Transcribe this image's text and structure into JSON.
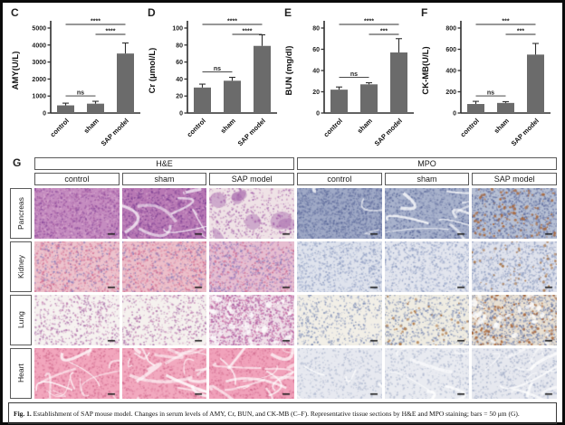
{
  "figure": {
    "caption_bold": "Fig. 1.",
    "caption_rest": " Establishment of SAP mouse model. Changes in serum levels of AMY, Cr, BUN, and CK-MB (C–F). Representative tissue sections by H&E and MPO staining; bars = 50 μm (G)."
  },
  "colors": {
    "bar": "#6b6b6b",
    "axis": "#2f2f2f",
    "error": "#2f2f2f"
  },
  "chart_data": [
    {
      "type": "bar",
      "panel": "C",
      "ylabel": "AMY(U/L)",
      "ylim": [
        0,
        5000
      ],
      "ytick_step": 1000,
      "categories": [
        "control",
        "sham",
        "SAP model"
      ],
      "values": [
        450,
        550,
        3500
      ],
      "errors": [
        130,
        140,
        620
      ],
      "sig": [
        {
          "pair": [
            0,
            1
          ],
          "label": "ns",
          "level": "bars"
        },
        {
          "pair": [
            1,
            2
          ],
          "label": "****",
          "level": 1
        },
        {
          "pair": [
            0,
            2
          ],
          "label": "****",
          "level": 2
        }
      ]
    },
    {
      "type": "bar",
      "panel": "D",
      "ylabel": "Cr (μmol/L)",
      "ylim": [
        0,
        100
      ],
      "ytick_step": 20,
      "categories": [
        "control",
        "sham",
        "SAP model"
      ],
      "values": [
        30,
        38,
        79
      ],
      "errors": [
        4,
        4,
        13
      ],
      "sig": [
        {
          "pair": [
            0,
            1
          ],
          "label": "ns",
          "level": "bars"
        },
        {
          "pair": [
            1,
            2
          ],
          "label": "****",
          "level": 1
        },
        {
          "pair": [
            0,
            2
          ],
          "label": "****",
          "level": 2
        }
      ]
    },
    {
      "type": "bar",
      "panel": "E",
      "ylabel": "BUN (mg/dl)",
      "ylim": [
        0,
        80
      ],
      "ytick_step": 20,
      "categories": [
        "control",
        "sham",
        "SAP model"
      ],
      "values": [
        22,
        27,
        57
      ],
      "errors": [
        2.5,
        1.5,
        13
      ],
      "sig": [
        {
          "pair": [
            0,
            1
          ],
          "label": "ns",
          "level": "bars"
        },
        {
          "pair": [
            1,
            2
          ],
          "label": "***",
          "level": 1
        },
        {
          "pair": [
            0,
            2
          ],
          "label": "****",
          "level": 2
        }
      ]
    },
    {
      "type": "bar",
      "panel": "F",
      "ylabel": "CK-MB(U/L)",
      "ylim": [
        0,
        800
      ],
      "ytick_step": 200,
      "categories": [
        "control",
        "sham",
        "SAP model"
      ],
      "values": [
        85,
        95,
        550
      ],
      "errors": [
        25,
        12,
        105
      ],
      "sig": [
        {
          "pair": [
            0,
            1
          ],
          "label": "ns",
          "level": "bars"
        },
        {
          "pair": [
            1,
            2
          ],
          "label": "***",
          "level": 1
        },
        {
          "pair": [
            0,
            2
          ],
          "label": "***",
          "level": 2
        }
      ]
    }
  ],
  "panelG": {
    "label": "G",
    "stain_groups": [
      {
        "label": "H&E",
        "cols": 3
      },
      {
        "label": "MPO",
        "cols": 3
      }
    ],
    "col_labels": [
      "control",
      "sham",
      "SAP model",
      "control",
      "sham",
      "SAP model"
    ],
    "rows": [
      {
        "label": "Pancreas",
        "tiles": [
          {
            "base": "#c58cc0",
            "dots": [
              "#8f4f9f",
              "#a75fa5",
              "#d9a9ce"
            ],
            "density": 1400
          },
          {
            "base": "#b878b4",
            "dots": [
              "#8f4f9f",
              "#7a3f92",
              "#cf9cc8"
            ],
            "density": 1200,
            "streaks": 10
          },
          {
            "base": "#efe2e6",
            "dots": [
              "#c490bd",
              "#a05ca8"
            ],
            "density": 600,
            "blobs": {
              "color": "#9e58a6",
              "count": 8
            }
          },
          {
            "base": "#9fa9c6",
            "dots": [
              "#5e6c9c",
              "#7883ad"
            ],
            "density": 1400,
            "streaks": 3
          },
          {
            "base": "#a8b2cc",
            "dots": [
              "#5e6c9c",
              "#8b96ba"
            ],
            "density": 1100,
            "streaks": 9
          },
          {
            "base": "#b7c0d4",
            "dots": [
              "#5e6c9c",
              "#6d79a8"
            ],
            "density": 1000,
            "extra": {
              "color": "#a9683c",
              "count": 130
            }
          }
        ]
      },
      {
        "label": "Kidney",
        "tiles": [
          {
            "base": "#edc3cd",
            "dots": [
              "#d16b90",
              "#8b7cba",
              "#e291ab"
            ],
            "density": 1100
          },
          {
            "base": "#ecbfca",
            "dots": [
              "#d16b90",
              "#8b7cba",
              "#e291ab"
            ],
            "density": 1100
          },
          {
            "base": "#e6bed1",
            "dots": [
              "#b885c2",
              "#d16b90",
              "#8b7cba"
            ],
            "density": 1100
          },
          {
            "base": "#dfe3ed",
            "dots": [
              "#8e9cc0",
              "#aab6d4"
            ],
            "density": 900
          },
          {
            "base": "#e2e5ee",
            "dots": [
              "#8e9cc0",
              "#aab6d4"
            ],
            "density": 850
          },
          {
            "base": "#dfe2ec",
            "dots": [
              "#8e9cc0",
              "#98a6c6"
            ],
            "density": 950,
            "extra": {
              "color": "#a9774a",
              "count": 60
            }
          }
        ]
      },
      {
        "label": "Lung",
        "tiles": [
          {
            "base": "#f6f2f0",
            "dots": [
              "#c787b5",
              "#a86da8"
            ],
            "density": 650
          },
          {
            "base": "#f5f1ee",
            "dots": [
              "#c787b5",
              "#a86da8"
            ],
            "density": 600
          },
          {
            "base": "#f0e0e9",
            "dots": [
              "#cb6fa6",
              "#a85ba0"
            ],
            "density": 1400,
            "holes": 26
          },
          {
            "base": "#f2efe7",
            "dots": [
              "#7d8cb4",
              "#9aa6c6"
            ],
            "density": 600
          },
          {
            "base": "#efece2",
            "dots": [
              "#7d8cb4"
            ],
            "density": 650,
            "extra": {
              "color": "#b07a48",
              "count": 45
            }
          },
          {
            "base": "#e9e0d2",
            "dots": [
              "#66749f",
              "#8e9cc0"
            ],
            "density": 1100,
            "extra": {
              "color": "#a9683c",
              "count": 150
            },
            "holes": 28
          }
        ]
      },
      {
        "label": "Heart",
        "tiles": [
          {
            "base": "#f2a6bd",
            "dots": [
              "#e284a3",
              "#d06a8e"
            ],
            "density": 700,
            "streaks": 14
          },
          {
            "base": "#f2a9bf",
            "dots": [
              "#e284a3",
              "#d06a8e"
            ],
            "density": 700,
            "streaks": 18
          },
          {
            "base": "#f1a2bb",
            "dots": [
              "#e284a3",
              "#d06a8e"
            ],
            "density": 700,
            "streaks": 16
          },
          {
            "base": "#e7e9f0",
            "dots": [
              "#b3bcd2"
            ],
            "density": 500,
            "streaks": 4
          },
          {
            "base": "#e9ebf1",
            "dots": [
              "#b3bcd2"
            ],
            "density": 500,
            "streaks": 6
          },
          {
            "base": "#e6e8ef",
            "dots": [
              "#aab4cc"
            ],
            "density": 550,
            "streaks": 10
          }
        ]
      }
    ]
  }
}
